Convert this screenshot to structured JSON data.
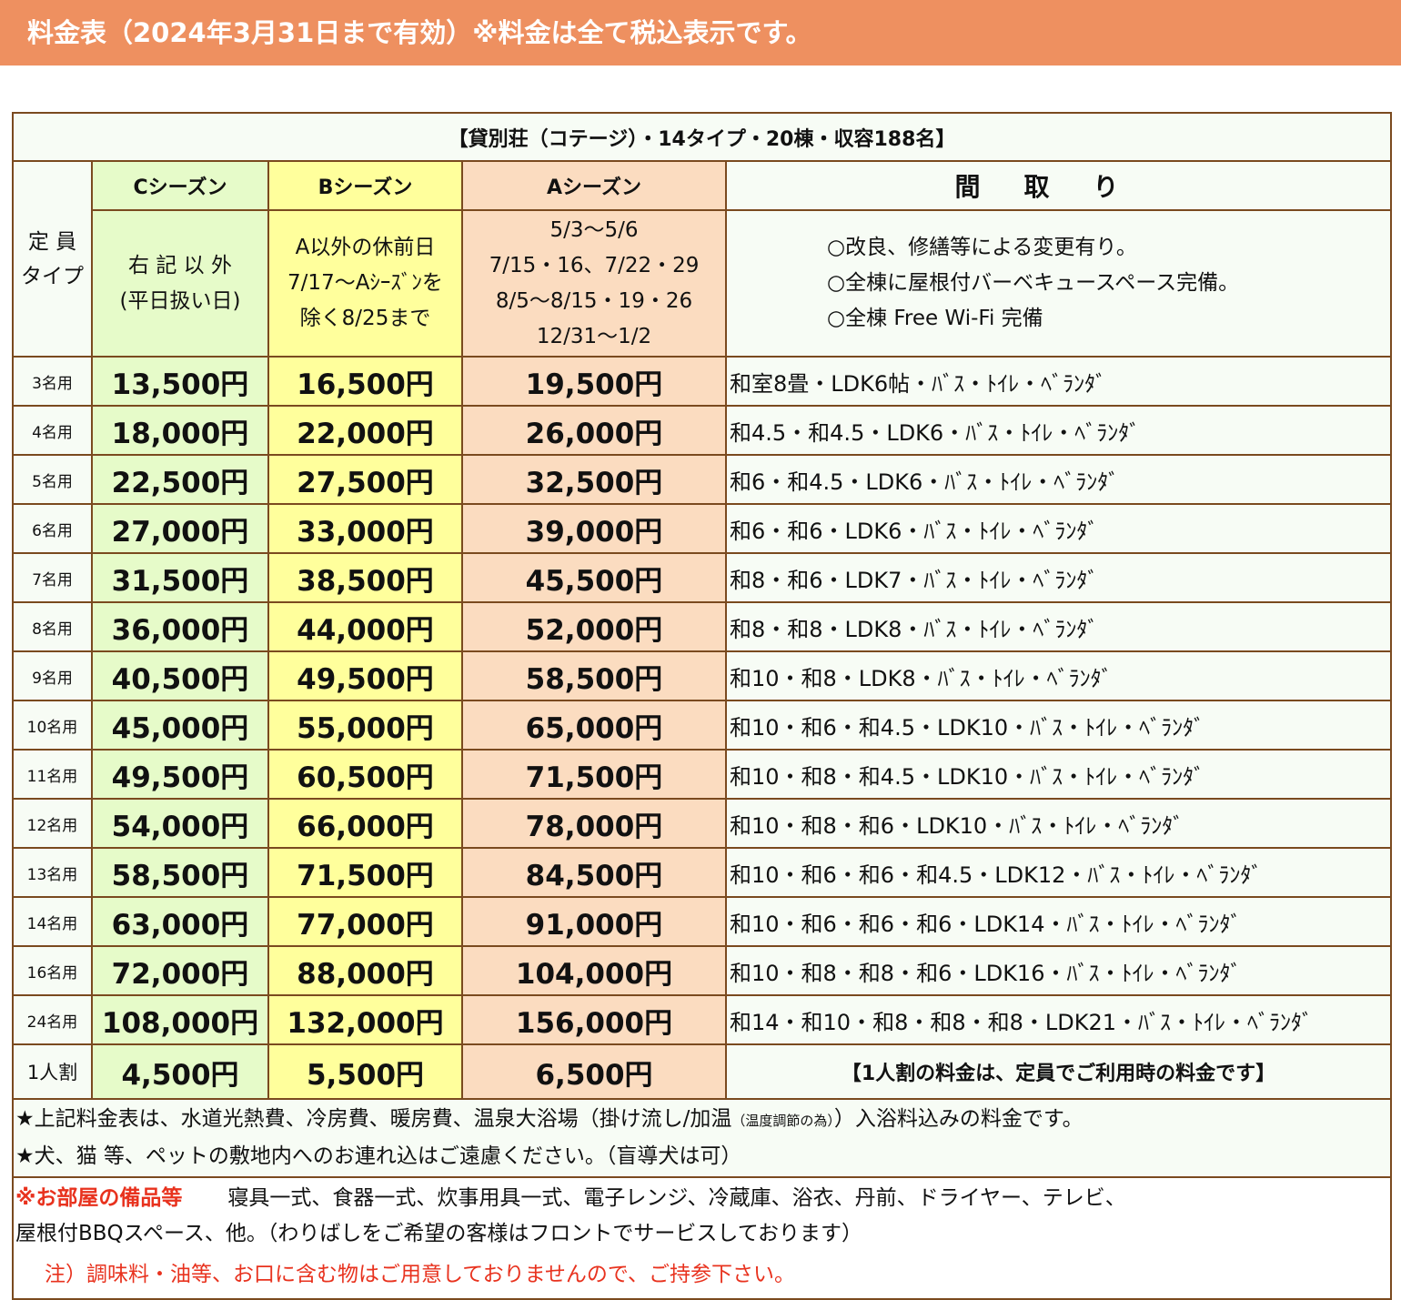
{
  "header": {
    "title": "料金表（2024年3月31日まで有効）※料金は全て税込表示です。"
  },
  "table": {
    "title": "【貸別荘（コテージ）・14タイプ・20棟・収容188名】",
    "capacity_header": [
      "定 員",
      "タイプ"
    ],
    "seasons": [
      {
        "name": "Cシーズン",
        "desc": [
          "右 記 以 外",
          "(平日扱い日)"
        ]
      },
      {
        "name": "Bシーズン",
        "desc": [
          "A以外の休前日",
          "7/17〜Aｼｰｽﾞﾝを",
          "除く8/25まで"
        ]
      },
      {
        "name": "Aシーズン",
        "desc": [
          "5/3〜5/6",
          "7/15・16、7/22・29",
          "8/5〜8/15・19・26",
          "12/31〜1/2"
        ]
      }
    ],
    "madori_header": "間取り",
    "madori_notes": [
      "○改良、修繕等による変更有り。",
      "○全棟に屋根付バーベキュースペース完備。",
      "○全棟 Free Wi-Fi 完備"
    ],
    "rows": [
      {
        "cap": "3名用",
        "c": "13,500円",
        "b": "16,500円",
        "a": "19,500円",
        "layout": "和室8畳・LDK6帖・ﾊﾞｽ・ﾄｲﾚ・ﾍﾞﾗﾝﾀﾞ"
      },
      {
        "cap": "4名用",
        "c": "18,000円",
        "b": "22,000円",
        "a": "26,000円",
        "layout": "和4.5・和4.5・LDK6・ﾊﾞｽ・ﾄｲﾚ・ﾍﾞﾗﾝﾀﾞ"
      },
      {
        "cap": "5名用",
        "c": "22,500円",
        "b": "27,500円",
        "a": "32,500円",
        "layout": "和6・和4.5・LDK6・ﾊﾞｽ・ﾄｲﾚ・ﾍﾞﾗﾝﾀﾞ"
      },
      {
        "cap": "6名用",
        "c": "27,000円",
        "b": "33,000円",
        "a": "39,000円",
        "layout": "和6・和6・LDK6・ﾊﾞｽ・ﾄｲﾚ・ﾍﾞﾗﾝﾀﾞ"
      },
      {
        "cap": "7名用",
        "c": "31,500円",
        "b": "38,500円",
        "a": "45,500円",
        "layout": "和8・和6・LDK7・ﾊﾞｽ・ﾄｲﾚ・ﾍﾞﾗﾝﾀﾞ"
      },
      {
        "cap": "8名用",
        "c": "36,000円",
        "b": "44,000円",
        "a": "52,000円",
        "layout": "和8・和8・LDK8・ﾊﾞｽ・ﾄｲﾚ・ﾍﾞﾗﾝﾀﾞ"
      },
      {
        "cap": "9名用",
        "c": "40,500円",
        "b": "49,500円",
        "a": "58,500円",
        "layout": "和10・和8・LDK8・ﾊﾞｽ・ﾄｲﾚ・ﾍﾞﾗﾝﾀﾞ"
      },
      {
        "cap": "10名用",
        "c": "45,000円",
        "b": "55,000円",
        "a": "65,000円",
        "layout": "和10・和6・和4.5・LDK10・ﾊﾞｽ・ﾄｲﾚ・ﾍﾞﾗﾝﾀﾞ"
      },
      {
        "cap": "11名用",
        "c": "49,500円",
        "b": "60,500円",
        "a": "71,500円",
        "layout": "和10・和8・和4.5・LDK10・ﾊﾞｽ・ﾄｲﾚ・ﾍﾞﾗﾝﾀﾞ"
      },
      {
        "cap": "12名用",
        "c": "54,000円",
        "b": "66,000円",
        "a": "78,000円",
        "layout": "和10・和8・和6・LDK10・ﾊﾞｽ・ﾄｲﾚ・ﾍﾞﾗﾝﾀﾞ"
      },
      {
        "cap": "13名用",
        "c": "58,500円",
        "b": "71,500円",
        "a": "84,500円",
        "layout": "和10・和6・和6・和4.5・LDK12・ﾊﾞｽ・ﾄｲﾚ・ﾍﾞﾗﾝﾀﾞ"
      },
      {
        "cap": "14名用",
        "c": "63,000円",
        "b": "77,000円",
        "a": "91,000円",
        "layout": "和10・和6・和6・和6・LDK14・ﾊﾞｽ・ﾄｲﾚ・ﾍﾞﾗﾝﾀﾞ"
      },
      {
        "cap": "16名用",
        "c": "72,000円",
        "b": "88,000円",
        "a": "104,000円",
        "layout": "和10・和8・和8・和6・LDK16・ﾊﾞｽ・ﾄｲﾚ・ﾍﾞﾗﾝﾀﾞ"
      },
      {
        "cap": "24名用",
        "c": "108,000円",
        "b": "132,000円",
        "a": "156,000円",
        "layout": "和14・和10・和8・和8・和8・LDK21・ﾊﾞｽ・ﾄｲﾚ・ﾍﾞﾗﾝﾀﾞ"
      }
    ],
    "per_person": {
      "cap": "1人割",
      "c": "4,500円",
      "b": "5,500円",
      "a": "6,500円",
      "note": "【1人割の料金は、定員でご利用時の料金です】"
    }
  },
  "notes": {
    "line1_a": "★上記料金表は、水道光熱費、冷房費、暖房費、温泉大浴場（掛け流し/加温",
    "line1_small": "（温度調節の為）",
    "line1_b": "）入浴料込みの料金です。",
    "line2": "★犬、猫 等、ペットの敷地内へのお連れ込はご遠慮ください。（盲導犬は可）"
  },
  "equipment": {
    "label": "※お部屋の備品等",
    "items": "寝具一式、食器一式、炊事用具一式、電子レンジ、冷蔵庫、浴衣、丹前、ドライヤー、テレビ、",
    "items2": "屋根付BBQスペース、他。（わりばしをご希望の客様はフロントでサービスしております）",
    "caution": "注）調味料・油等、お口に含む物はご用意しておりませんので、ご持参下さい。"
  }
}
